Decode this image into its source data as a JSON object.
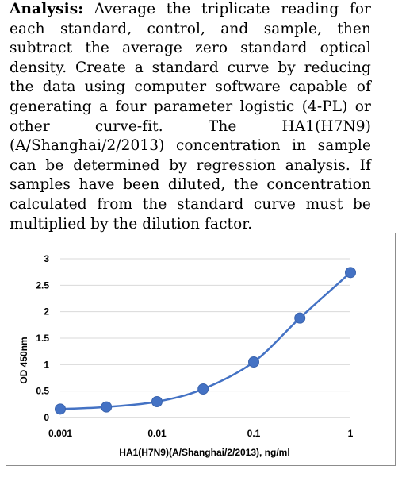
{
  "text": {
    "lead": "Analysis:",
    "body": " Average the triplicate reading for each standard, control, and sample, then subtract the average zero standard optical density. Create a standard curve by reducing the data using computer software capable of generating a four parameter logistic (4-PL) or other curve-fit. The HA1(H7N9)(A/Shanghai/2/2013) concentration in sample can be determined by regression analysis. If samples have been diluted, the concentration calculated from the standard curve must be multiplied by the dilution factor."
  },
  "chart_data": {
    "type": "line",
    "xscale": "log",
    "xlabel": "HA1(H7N9)(A/Shanghai/2/2013), ng/ml",
    "ylabel": "OD 450nm",
    "xlim": [
      0.001,
      1
    ],
    "ylim": [
      0,
      3
    ],
    "x_ticks": [
      0.001,
      0.01,
      0.1,
      1
    ],
    "x_tick_labels": [
      "0.001",
      "0.01",
      "0.1",
      "1"
    ],
    "y_ticks": [
      0,
      0.5,
      1,
      1.5,
      2,
      2.5,
      3
    ],
    "y_tick_labels": [
      "0",
      "0.5",
      "1",
      "1.5",
      "2",
      "2.5",
      "3"
    ],
    "grid": true,
    "series": [
      {
        "color": "#4472c4",
        "x": [
          0.001,
          0.003,
          0.01,
          0.03,
          0.1,
          0.3,
          1
        ],
        "y": [
          0.16,
          0.2,
          0.3,
          0.54,
          1.05,
          1.88,
          2.74
        ]
      }
    ]
  }
}
